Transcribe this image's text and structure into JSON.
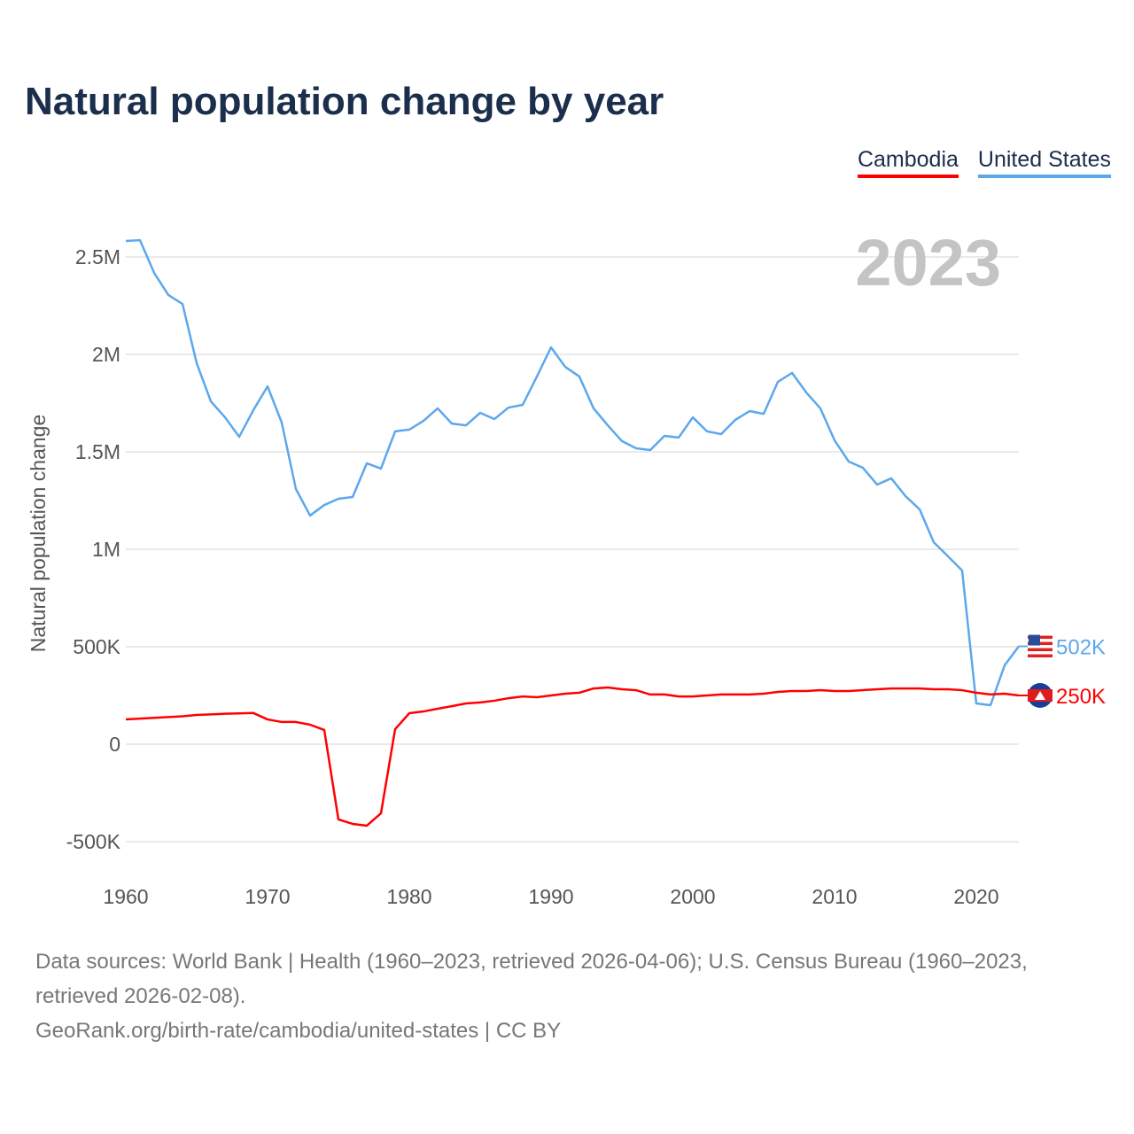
{
  "title": "Natural population change by year",
  "year_label": "2023",
  "chart_data": {
    "type": "line",
    "title": "Natural population change by year",
    "xlabel": "",
    "ylabel": "Natural population change",
    "xlim": [
      1960,
      2023
    ],
    "ylim": [
      -500000,
      2600000
    ],
    "grid": true,
    "legend_position": "top-right",
    "x_ticks": [
      1960,
      1970,
      1980,
      1990,
      2000,
      2010,
      2020
    ],
    "x_tick_labels": [
      "1960",
      "1970",
      "1980",
      "1990",
      "2000",
      "2010",
      "2020"
    ],
    "y_ticks": [
      -500000,
      0,
      500000,
      1000000,
      1500000,
      2000000,
      2500000
    ],
    "y_tick_labels": [
      "-500K",
      "0",
      "500K",
      "1M",
      "1.5M",
      "2M",
      "2.5M"
    ],
    "x": [
      1960,
      1961,
      1962,
      1963,
      1964,
      1965,
      1966,
      1967,
      1968,
      1969,
      1970,
      1971,
      1972,
      1973,
      1974,
      1975,
      1976,
      1977,
      1978,
      1979,
      1980,
      1981,
      1982,
      1983,
      1984,
      1985,
      1986,
      1987,
      1988,
      1989,
      1990,
      1991,
      1992,
      1993,
      1994,
      1995,
      1996,
      1997,
      1998,
      1999,
      2000,
      2001,
      2002,
      2003,
      2004,
      2005,
      2006,
      2007,
      2008,
      2009,
      2010,
      2011,
      2012,
      2013,
      2014,
      2015,
      2016,
      2017,
      2018,
      2019,
      2020,
      2021,
      2022,
      2023
    ],
    "series": [
      {
        "name": "Cambodia",
        "color": "#ff0000",
        "end_label": "250K",
        "flag": "cambodia-flag",
        "values": [
          127000,
          131000,
          135000,
          139000,
          143000,
          150000,
          153000,
          156000,
          158000,
          160000,
          127000,
          114000,
          114000,
          100000,
          73000,
          -386000,
          -409000,
          -418000,
          -355000,
          77000,
          159000,
          168000,
          182000,
          195000,
          209000,
          214000,
          223000,
          236000,
          245000,
          241000,
          250000,
          259000,
          264000,
          286000,
          291000,
          282000,
          277000,
          255000,
          255000,
          245000,
          245000,
          250000,
          255000,
          255000,
          255000,
          259000,
          268000,
          273000,
          273000,
          277000,
          273000,
          273000,
          277000,
          282000,
          286000,
          286000,
          286000,
          282000,
          282000,
          277000,
          264000,
          255000,
          259000,
          250000
        ]
      },
      {
        "name": "United States",
        "color": "#5ca8ec",
        "end_label": "502K",
        "flag": "us-flag",
        "values": [
          2582000,
          2586000,
          2418000,
          2305000,
          2259000,
          1955000,
          1759000,
          1677000,
          1577000,
          1714000,
          1836000,
          1650000,
          1309000,
          1173000,
          1227000,
          1259000,
          1268000,
          1441000,
          1414000,
          1605000,
          1614000,
          1659000,
          1723000,
          1645000,
          1636000,
          1700000,
          1668000,
          1727000,
          1741000,
          1886000,
          2036000,
          1936000,
          1886000,
          1723000,
          1636000,
          1555000,
          1518000,
          1509000,
          1582000,
          1573000,
          1677000,
          1605000,
          1591000,
          1664000,
          1709000,
          1695000,
          1859000,
          1905000,
          1805000,
          1723000,
          1559000,
          1450000,
          1418000,
          1332000,
          1364000,
          1273000,
          1205000,
          1036000,
          964000,
          891000,
          209000,
          200000,
          405000,
          502000
        ]
      }
    ]
  },
  "footer": {
    "sources": "Data sources: World Bank | Health (1960–2023, retrieved 2026-04-06); U.S. Census Bureau (1960–2023, retrieved 2026-02-08).",
    "link": "GeoRank.org/birth-rate/cambodia/united-states | CC BY"
  }
}
